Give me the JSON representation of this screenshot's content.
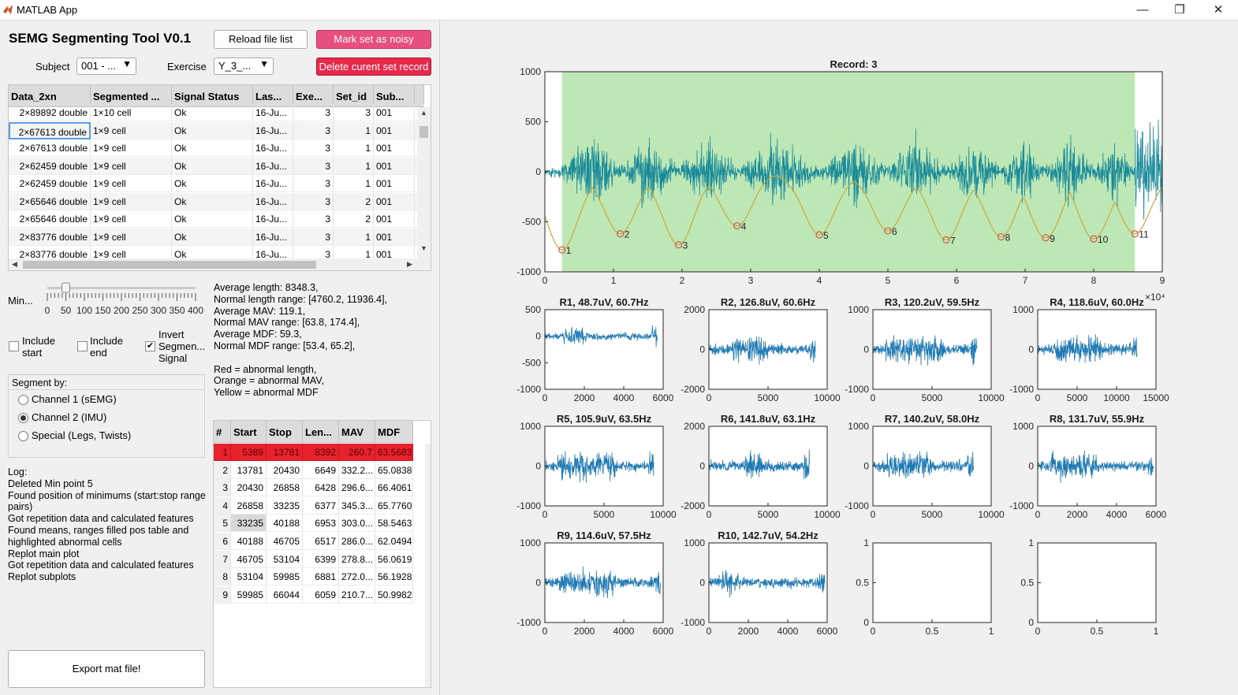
{
  "window": {
    "title": "MATLAB App"
  },
  "app": {
    "title": "SEMG Segmenting Tool V0.1"
  },
  "buttons": {
    "reload": "Reload file list",
    "mark_noisy": "Mark set as noisy",
    "delete_record": "Delete curent set record",
    "export": "Export mat file!"
  },
  "filters": {
    "subject_label": "Subject",
    "subject_value": "001 - ...",
    "exercise_label": "Exercise",
    "exercise_value": "Y_3_..."
  },
  "data_table": {
    "columns": [
      "Data_2xn",
      "Segmented ...",
      "Signal Status",
      "Las...",
      "Exe...",
      "Set_id",
      "Sub...",
      ""
    ],
    "rows": [
      [
        "2×89892 double",
        "1×10 cell",
        "Ok",
        "16-Ju...",
        "3",
        "3",
        "001",
        ""
      ],
      [
        "2×67613 double",
        "1×9 cell",
        "Ok",
        "16-Ju...",
        "3",
        "1",
        "001",
        ""
      ],
      [
        "2×67613 double",
        "1×9 cell",
        "Ok",
        "16-Ju...",
        "3",
        "1",
        "001",
        ""
      ],
      [
        "2×62459 double",
        "1×9 cell",
        "Ok",
        "16-Ju...",
        "3",
        "1",
        "001",
        ""
      ],
      [
        "2×62459 double",
        "1×9 cell",
        "Ok",
        "16-Ju...",
        "3",
        "1",
        "001",
        ""
      ],
      [
        "2×65646 double",
        "1×9 cell",
        "Ok",
        "16-Ju...",
        "3",
        "2",
        "001",
        ""
      ],
      [
        "2×65646 double",
        "1×9 cell",
        "Ok",
        "16-Ju...",
        "3",
        "2",
        "001",
        ""
      ],
      [
        "2×83776 double",
        "1×9 cell",
        "Ok",
        "16-Ju...",
        "3",
        "1",
        "001",
        ""
      ],
      [
        "2×83776 double",
        "1×9 cell",
        "Ok",
        "16-Ju...",
        "3",
        "1",
        "001",
        ""
      ]
    ]
  },
  "slider": {
    "label": "Min...",
    "ticks": [
      "0",
      "50",
      "100",
      "150",
      "200",
      "250",
      "300",
      "350",
      "400"
    ],
    "value": 50,
    "max": 400
  },
  "options": {
    "include_start": "Include start",
    "include_end": "Include end",
    "invert": "Invert Segmen... Signal",
    "include_start_checked": false,
    "include_end_checked": false,
    "invert_checked": true
  },
  "segment_by": {
    "title": "Segment by:",
    "options": [
      "Channel 1 (sEMG)",
      "Channel 2 (IMU)",
      "Special (Legs, Twists)"
    ],
    "selected": 1
  },
  "stats": [
    "Average length: 8348.3,",
    "Normal length range: [4760.2, 11936.4],",
    "Average MAV: 119.1,",
    "Normal MAV range: [63.8, 174.4],",
    "Average MDF: 59.3,",
    "Normal MDF range: [53.4, 65.2],",
    "",
    "Red = abnormal length,",
    "Orange = abnormal MAV,",
    "Yellow = abnormal MDF"
  ],
  "log": {
    "title": "Log:",
    "lines": [
      "Deleted Min point 5",
      "Found position of minimums (start:stop range",
      "pairs)",
      "Got repetition data and calculated features",
      "Found means, ranges filled pos table and",
      "highlighted abnormal cells",
      "Replot main plot",
      "Got repetition data and calculated features",
      "Replot subplots"
    ]
  },
  "seg_table": {
    "columns": [
      "#",
      "Start",
      "Stop",
      "Len...",
      "MAV",
      "MDF"
    ],
    "rows": [
      [
        "1",
        "5389",
        "13781",
        "8392",
        "260.7",
        "63.5683"
      ],
      [
        "2",
        "13781",
        "20430",
        "6649",
        "332.2...",
        "65.0838"
      ],
      [
        "3",
        "20430",
        "26858",
        "6428",
        "296.6...",
        "66.4061"
      ],
      [
        "4",
        "26858",
        "33235",
        "6377",
        "345.3...",
        "65.7760"
      ],
      [
        "5",
        "33235",
        "40188",
        "6953",
        "303.0...",
        "58.5463"
      ],
      [
        "6",
        "40188",
        "46705",
        "6517",
        "286.0...",
        "62.0494"
      ],
      [
        "7",
        "46705",
        "53104",
        "6399",
        "278.8...",
        "56.0619"
      ],
      [
        "8",
        "53104",
        "59985",
        "6881",
        "272.0...",
        "56.1928"
      ],
      [
        "9",
        "59985",
        "66044",
        "6059",
        "210.7...",
        "50.9982"
      ]
    ],
    "highlight_row": 0,
    "highlight_color": "#e8222c"
  },
  "colors": {
    "signal": "#1f7ab5",
    "main_signal": "#1b8b9a",
    "envelope": "#c8a83c",
    "segment_bg": "#bde8b6",
    "marker": "#d9534f"
  },
  "chart_data": [
    {
      "type": "line",
      "title": "Record: 3",
      "xlim": [
        0,
        90000
      ],
      "ylim": [
        -1000,
        1000
      ],
      "xticks": [
        "0",
        "1",
        "2",
        "3",
        "4",
        "5",
        "6",
        "7",
        "8",
        "9"
      ],
      "x_multiplier": "×10⁴",
      "yticks": [
        "1000",
        "500",
        "0",
        "-500",
        "-1000"
      ],
      "segment_range": [
        2500,
        86000
      ],
      "minima": [
        {
          "label": "1",
          "x": 2500,
          "y": -780
        },
        {
          "label": "2",
          "x": 11000,
          "y": -620
        },
        {
          "label": "3",
          "x": 19500,
          "y": -730
        },
        {
          "label": "4",
          "x": 28000,
          "y": -540
        },
        {
          "label": "5",
          "x": 40000,
          "y": -630
        },
        {
          "label": "6",
          "x": 50000,
          "y": -590
        },
        {
          "label": "7",
          "x": 58500,
          "y": -680
        },
        {
          "label": "8",
          "x": 66500,
          "y": -650
        },
        {
          "label": "9",
          "x": 73000,
          "y": -660
        },
        {
          "label": "10",
          "x": 80000,
          "y": -670
        },
        {
          "label": "11",
          "x": 86000,
          "y": -620
        }
      ]
    },
    {
      "type": "line",
      "title": "R1, 48.7uV, 60.7Hz",
      "xlim": [
        0,
        8392
      ],
      "ylim": [
        -1000,
        500
      ],
      "xticks": [
        "0",
        "2000",
        "4000",
        "6000"
      ],
      "yticks": [
        "500",
        "0",
        "-500",
        "-1000"
      ]
    },
    {
      "type": "line",
      "title": "R2, 126.8uV, 60.6Hz",
      "xlim": [
        0,
        10000
      ],
      "ylim": [
        -2000,
        2000
      ],
      "xticks": [
        "0",
        "5000",
        "10000"
      ],
      "yticks": [
        "2000",
        "0",
        "-2000"
      ]
    },
    {
      "type": "line",
      "title": "R3, 120.2uV, 59.5Hz",
      "xlim": [
        0,
        10000
      ],
      "ylim": [
        -1000,
        1000
      ],
      "xticks": [
        "0",
        "5000",
        "10000"
      ],
      "yticks": [
        "1000",
        "0",
        "-1000"
      ]
    },
    {
      "type": "line",
      "title": "R4, 118.6uV, 60.0Hz",
      "xlim": [
        0,
        15000
      ],
      "ylim": [
        -1000,
        1000
      ],
      "xticks": [
        "0",
        "5000",
        "10000",
        "15000"
      ],
      "yticks": [
        "1000",
        "0",
        "-1000"
      ]
    },
    {
      "type": "line",
      "title": "R5, 105.9uV, 63.5Hz",
      "xlim": [
        0,
        10000
      ],
      "ylim": [
        -1000,
        1000
      ],
      "xticks": [
        "0",
        "5000",
        "10000"
      ],
      "yticks": [
        "1000",
        "0",
        "-1000"
      ]
    },
    {
      "type": "line",
      "title": "R6, 141.8uV, 63.1Hz",
      "xlim": [
        0,
        10000
      ],
      "ylim": [
        -2000,
        2000
      ],
      "xticks": [
        "0",
        "5000",
        "10000"
      ],
      "yticks": [
        "2000",
        "0",
        "-2000"
      ]
    },
    {
      "type": "line",
      "title": "R7, 140.2uV, 58.0Hz",
      "xlim": [
        0,
        10000
      ],
      "ylim": [
        -1000,
        1000
      ],
      "xticks": [
        "0",
        "5000",
        "10000"
      ],
      "yticks": [
        "1000",
        "0",
        "-1000"
      ]
    },
    {
      "type": "line",
      "title": "R8, 131.7uV, 55.9Hz",
      "xlim": [
        0,
        6881
      ],
      "ylim": [
        -1000,
        1000
      ],
      "xticks": [
        "0",
        "2000",
        "4000",
        "6000"
      ],
      "yticks": [
        "1000",
        "0",
        "-1000"
      ]
    },
    {
      "type": "line",
      "title": "R9, 114.6uV, 57.5Hz",
      "xlim": [
        0,
        6059
      ],
      "ylim": [
        -1000,
        1000
      ],
      "xticks": [
        "0",
        "2000",
        "4000",
        "6000"
      ],
      "yticks": [
        "1000",
        "0",
        "-1000"
      ]
    },
    {
      "type": "line",
      "title": "R10, 142.7uV, 54.2Hz",
      "xlim": [
        0,
        6059
      ],
      "ylim": [
        -1000,
        1000
      ],
      "xticks": [
        "0",
        "2000",
        "4000",
        "6000"
      ],
      "yticks": [
        "1000",
        "0",
        "-1000"
      ]
    },
    {
      "type": "line",
      "title": "",
      "xlim": [
        0,
        1
      ],
      "ylim": [
        0,
        1
      ],
      "xticks": [
        "0",
        "0.5",
        "1"
      ],
      "yticks": [
        "1",
        "0.5",
        "0"
      ]
    },
    {
      "type": "line",
      "title": "",
      "xlim": [
        0,
        1
      ],
      "ylim": [
        0,
        1
      ],
      "xticks": [
        "0",
        "0.5",
        "1"
      ],
      "yticks": [
        "1",
        "0.5",
        "0"
      ]
    }
  ]
}
